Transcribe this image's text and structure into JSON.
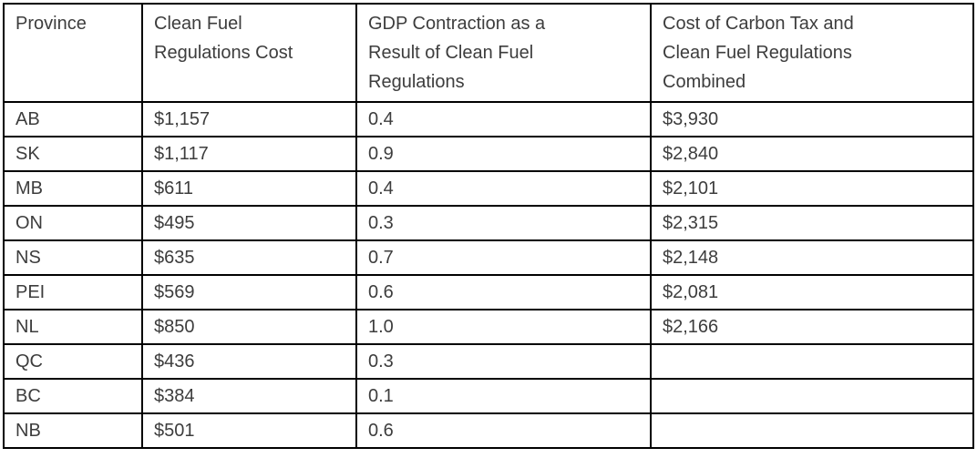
{
  "document": {
    "background_color": "#ffffff",
    "text_color": "#3d3d3d",
    "border_color": "#000000"
  },
  "table": {
    "columns": [
      "Province",
      "Clean Fuel\nRegulations Cost",
      "GDP Contraction as a\nResult of Clean Fuel\nRegulations",
      "Cost of Carbon Tax and\nClean Fuel Regulations\nCombined"
    ],
    "rows": [
      [
        "AB",
        "$1,157",
        "0.4",
        "$3,930"
      ],
      [
        "SK",
        "$1,117",
        "0.9",
        "$2,840"
      ],
      [
        "MB",
        "$611",
        "0.4",
        "$2,101"
      ],
      [
        "ON",
        "$495",
        "0.3",
        "$2,315"
      ],
      [
        "NS",
        "$635",
        "0.7",
        "$2,148"
      ],
      [
        "PEI",
        "$569",
        "0.6",
        "$2,081"
      ],
      [
        "NL",
        "$850",
        "1.0",
        "$2,166"
      ],
      [
        "QC",
        "$436",
        "0.3",
        ""
      ],
      [
        "BC",
        "$384",
        "0.1",
        ""
      ],
      [
        "NB",
        "$501",
        "0.6",
        ""
      ]
    ]
  }
}
